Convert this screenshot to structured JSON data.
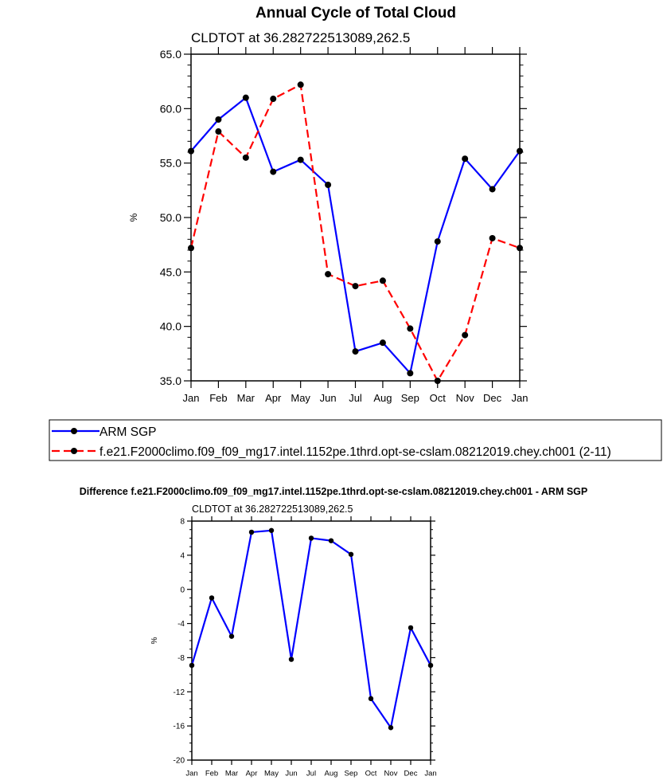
{
  "chart_data": [
    {
      "type": "line",
      "title": "Annual Cycle of Total Cloud",
      "subtitle": "CLDTOT at 36.282722513089,262.5",
      "xlabel": "",
      "ylabel": "%",
      "ylim": [
        35,
        65
      ],
      "y_ticks": [
        35,
        40,
        45,
        50,
        55,
        60,
        65
      ],
      "y_tick_labels": [
        "35.0",
        "40.0",
        "45.0",
        "50.0",
        "55.0",
        "60.0",
        "65.0"
      ],
      "categories": [
        "Jan",
        "Feb",
        "Mar",
        "Apr",
        "May",
        "Jun",
        "Jul",
        "Aug",
        "Sep",
        "Oct",
        "Nov",
        "Dec",
        "Jan"
      ],
      "series": [
        {
          "name": "ARM SGP",
          "color": "#0000ff",
          "dash": "solid",
          "values": [
            56.1,
            59.0,
            61.0,
            54.2,
            55.3,
            53.0,
            37.7,
            38.5,
            35.7,
            47.8,
            55.4,
            52.6,
            56.1
          ]
        },
        {
          "name": "f.e21.F2000climo.f09_f09_mg17.intel.1152pe.1thrd.opt-se-cslam.08212019.chey.ch001 (2-11)",
          "color": "#ff0000",
          "dash": "dashed",
          "values": [
            47.2,
            57.9,
            55.5,
            60.9,
            62.2,
            44.8,
            43.7,
            44.2,
            39.8,
            35.0,
            39.2,
            48.1,
            47.2
          ]
        }
      ],
      "legend": "below"
    },
    {
      "type": "line",
      "title": "Difference f.e21.F2000climo.f09_f09_mg17.intel.1152pe.1thrd.opt-se-cslam.08212019.chey.ch001 - ARM SGP",
      "subtitle": "CLDTOT at 36.282722513089,262.5",
      "xlabel": "",
      "ylabel": "%",
      "ylim": [
        -20,
        8
      ],
      "y_ticks": [
        -20,
        -16,
        -12,
        -8,
        -4,
        0,
        4,
        8
      ],
      "y_tick_labels": [
        "-20",
        "-16",
        "-12",
        "-8",
        "-4",
        "0",
        "4",
        "8"
      ],
      "categories": [
        "Jan",
        "Feb",
        "Mar",
        "Apr",
        "May",
        "Jun",
        "Jul",
        "Aug",
        "Sep",
        "Oct",
        "Nov",
        "Dec",
        "Jan"
      ],
      "series": [
        {
          "name": "Difference",
          "color": "#0000ff",
          "dash": "solid",
          "values": [
            -8.9,
            -1.0,
            -5.5,
            6.7,
            6.9,
            -8.2,
            6.0,
            5.7,
            4.1,
            -12.8,
            -16.2,
            -4.5,
            -8.9
          ]
        }
      ]
    }
  ]
}
